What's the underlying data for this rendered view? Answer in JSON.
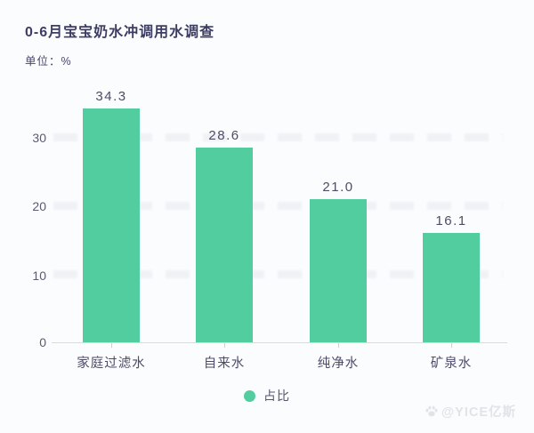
{
  "header": {
    "title": "0-6月宝宝奶水冲调用水调查",
    "unit_label": "单位：%"
  },
  "chart_data": {
    "type": "bar",
    "title": "0-6月宝宝奶水冲调用水调查",
    "unit": "%",
    "categories": [
      "家庭过滤水",
      "自来水",
      "纯净水",
      "矿泉水"
    ],
    "values": [
      34.3,
      28.6,
      21.0,
      16.1
    ],
    "value_labels": [
      "34.3",
      "28.6",
      "21.0",
      "16.1"
    ],
    "ytick_labels": [
      "30",
      "20",
      "10",
      "0"
    ],
    "ylim": [
      0,
      37.5
    ],
    "grid": "faint watermark rows at 10/20/30 levels",
    "legend_position": "bottom-center",
    "legend": [
      {
        "label": "占比",
        "color": "#52cda0"
      }
    ],
    "bar_color": "#52cda0"
  },
  "legend": {
    "label": "占比"
  },
  "watermark": {
    "credit": "@YICE亿斯"
  },
  "colors": {
    "bar": "#52cda0",
    "title_text": "#3d3d63",
    "axis_text": "#55556d",
    "background": "#fbfcfe",
    "watermark_text": "#e2e3e8"
  }
}
